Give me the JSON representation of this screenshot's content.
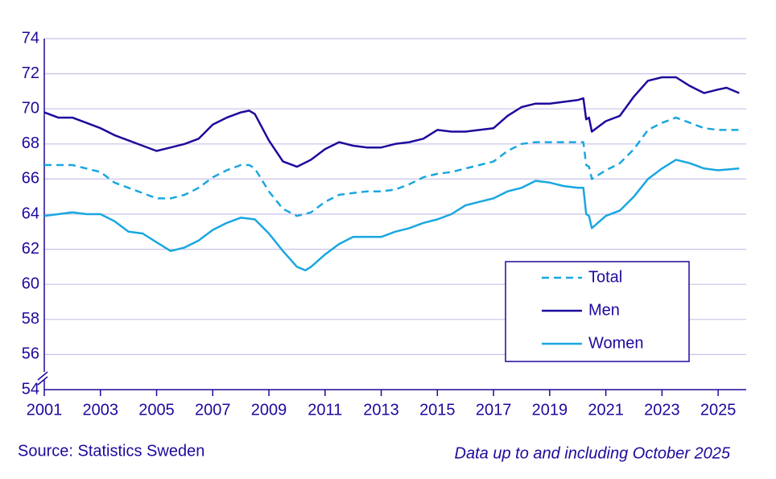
{
  "chart_data": {
    "type": "line",
    "ylim": [
      54,
      74
    ],
    "yticks": [
      54,
      56,
      58,
      60,
      62,
      64,
      66,
      68,
      70,
      72,
      74
    ],
    "xlim": [
      2001,
      2026
    ],
    "xticks": [
      2001,
      2003,
      2005,
      2007,
      2009,
      2011,
      2013,
      2015,
      2017,
      2019,
      2021,
      2023,
      2025
    ],
    "grid": true,
    "legend": "lower right",
    "source": "Source: Statistics Sweden",
    "note": "Data up to and including October 2025",
    "series": [
      {
        "name": "Total",
        "color": "#1aa7e0",
        "dashed": true,
        "x": [
          2001,
          2002,
          2003,
          2003.5,
          2004,
          2004.5,
          2005,
          2005.5,
          2006,
          2006.5,
          2007,
          2007.5,
          2008,
          2008.3,
          2008.5,
          2009,
          2009.5,
          2010,
          2010.5,
          2011,
          2011.5,
          2012,
          2012.5,
          2013,
          2013.5,
          2014,
          2014.5,
          2015,
          2015.5,
          2016,
          2016.5,
          2017,
          2017.5,
          2018,
          2018.5,
          2019,
          2019.5,
          2020,
          2020.2,
          2020.3,
          2020.4,
          2020.5,
          2021,
          2021.5,
          2022,
          2022.5,
          2023,
          2023.5,
          2024,
          2024.5,
          2025,
          2025.75
        ],
        "values": [
          66.8,
          66.8,
          66.4,
          65.8,
          65.5,
          65.2,
          64.9,
          64.9,
          65.1,
          65.5,
          66.1,
          66.5,
          66.8,
          66.8,
          66.6,
          65.3,
          64.3,
          63.9,
          64.1,
          64.7,
          65.1,
          65.2,
          65.3,
          65.3,
          65.4,
          65.7,
          66.1,
          66.3,
          66.4,
          66.6,
          66.8,
          67.0,
          67.6,
          68.0,
          68.1,
          68.1,
          68.1,
          68.1,
          68.1,
          66.8,
          66.7,
          66.0,
          66.5,
          66.9,
          67.7,
          68.8,
          69.2,
          69.5,
          69.2,
          68.9,
          68.8,
          68.8
        ]
      },
      {
        "name": "Men",
        "color": "#1d0a9c",
        "dashed": false,
        "x": [
          2001,
          2001.5,
          2002,
          2002.5,
          2003,
          2003.5,
          2004,
          2004.5,
          2005,
          2005.5,
          2006,
          2006.5,
          2007,
          2007.5,
          2008,
          2008.3,
          2008.5,
          2009,
          2009.5,
          2010,
          2010.5,
          2011,
          2011.5,
          2012,
          2012.5,
          2013,
          2013.5,
          2014,
          2014.5,
          2015,
          2015.5,
          2016,
          2016.5,
          2017,
          2017.5,
          2018,
          2018.5,
          2019,
          2019.5,
          2020,
          2020.2,
          2020.3,
          2020.4,
          2020.5,
          2021,
          2021.5,
          2022,
          2022.5,
          2023,
          2023.5,
          2024,
          2024.5,
          2025,
          2025.3,
          2025.75
        ],
        "values": [
          69.8,
          69.5,
          69.5,
          69.2,
          68.9,
          68.5,
          68.2,
          67.9,
          67.6,
          67.8,
          68.0,
          68.3,
          69.1,
          69.5,
          69.8,
          69.9,
          69.7,
          68.2,
          67.0,
          66.7,
          67.1,
          67.7,
          68.1,
          67.9,
          67.8,
          67.8,
          68.0,
          68.1,
          68.3,
          68.8,
          68.7,
          68.7,
          68.8,
          68.9,
          69.6,
          70.1,
          70.3,
          70.3,
          70.4,
          70.5,
          70.6,
          69.4,
          69.5,
          68.7,
          69.3,
          69.6,
          70.7,
          71.6,
          71.8,
          71.8,
          71.3,
          70.9,
          71.1,
          71.2,
          70.9
        ]
      },
      {
        "name": "Women",
        "color": "#1aa7e0",
        "dashed": false,
        "x": [
          2001,
          2001.5,
          2002,
          2002.5,
          2003,
          2003.5,
          2004,
          2004.5,
          2005,
          2005.5,
          2006,
          2006.5,
          2007,
          2007.5,
          2008,
          2008.5,
          2009,
          2009.5,
          2010,
          2010.3,
          2010.5,
          2011,
          2011.5,
          2012,
          2012.5,
          2013,
          2013.5,
          2014,
          2014.5,
          2015,
          2015.5,
          2016,
          2016.5,
          2017,
          2017.5,
          2018,
          2018.5,
          2019,
          2019.5,
          2020,
          2020.2,
          2020.3,
          2020.4,
          2020.5,
          2021,
          2021.5,
          2022,
          2022.5,
          2023,
          2023.5,
          2024,
          2024.5,
          2025,
          2025.75
        ],
        "values": [
          63.9,
          64.0,
          64.1,
          64.0,
          64.0,
          63.6,
          63.0,
          62.9,
          62.4,
          61.9,
          62.1,
          62.5,
          63.1,
          63.5,
          63.8,
          63.7,
          62.9,
          61.9,
          61.0,
          60.8,
          61.0,
          61.7,
          62.3,
          62.7,
          62.7,
          62.7,
          63.0,
          63.2,
          63.5,
          63.7,
          64.0,
          64.5,
          64.7,
          64.9,
          65.3,
          65.5,
          65.9,
          65.8,
          65.6,
          65.5,
          65.5,
          64.0,
          63.9,
          63.2,
          63.9,
          64.2,
          65.0,
          66.0,
          66.6,
          67.1,
          66.9,
          66.6,
          66.5,
          66.6
        ]
      }
    ]
  }
}
